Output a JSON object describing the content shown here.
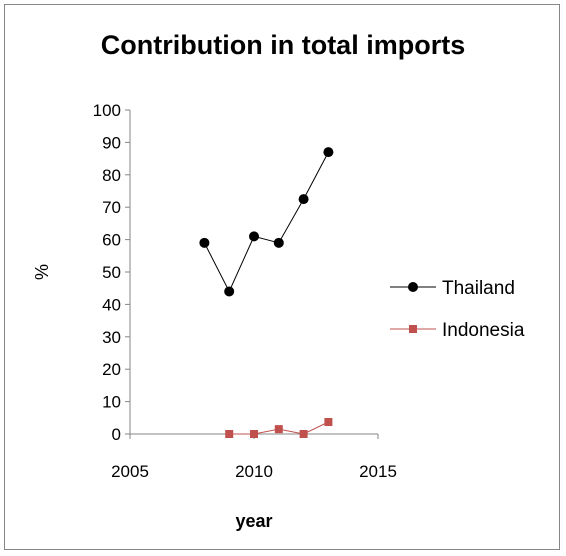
{
  "chart_data": {
    "type": "scatter",
    "title": "Contribution in total imports",
    "xlabel": "year",
    "ylabel": "%",
    "xlim": [
      2005,
      2015
    ],
    "ylim": [
      0,
      100
    ],
    "x_ticks": [
      2005,
      2010,
      2015
    ],
    "y_ticks": [
      0,
      10,
      20,
      30,
      40,
      50,
      60,
      70,
      80,
      90,
      100
    ],
    "grid": false,
    "legend": "right",
    "series": [
      {
        "name": "Thailand",
        "color": "#000000",
        "marker": "circle",
        "x": [
          2008,
          2009,
          2010,
          2011,
          2012,
          2013
        ],
        "y": [
          59,
          44,
          61,
          59,
          72.5,
          87
        ]
      },
      {
        "name": "Indonesia",
        "color": "#c0504d",
        "marker": "square",
        "x": [
          2009,
          2010,
          2011,
          2012,
          2013
        ],
        "y": [
          0,
          0,
          1.5,
          0,
          3.7
        ]
      }
    ]
  }
}
